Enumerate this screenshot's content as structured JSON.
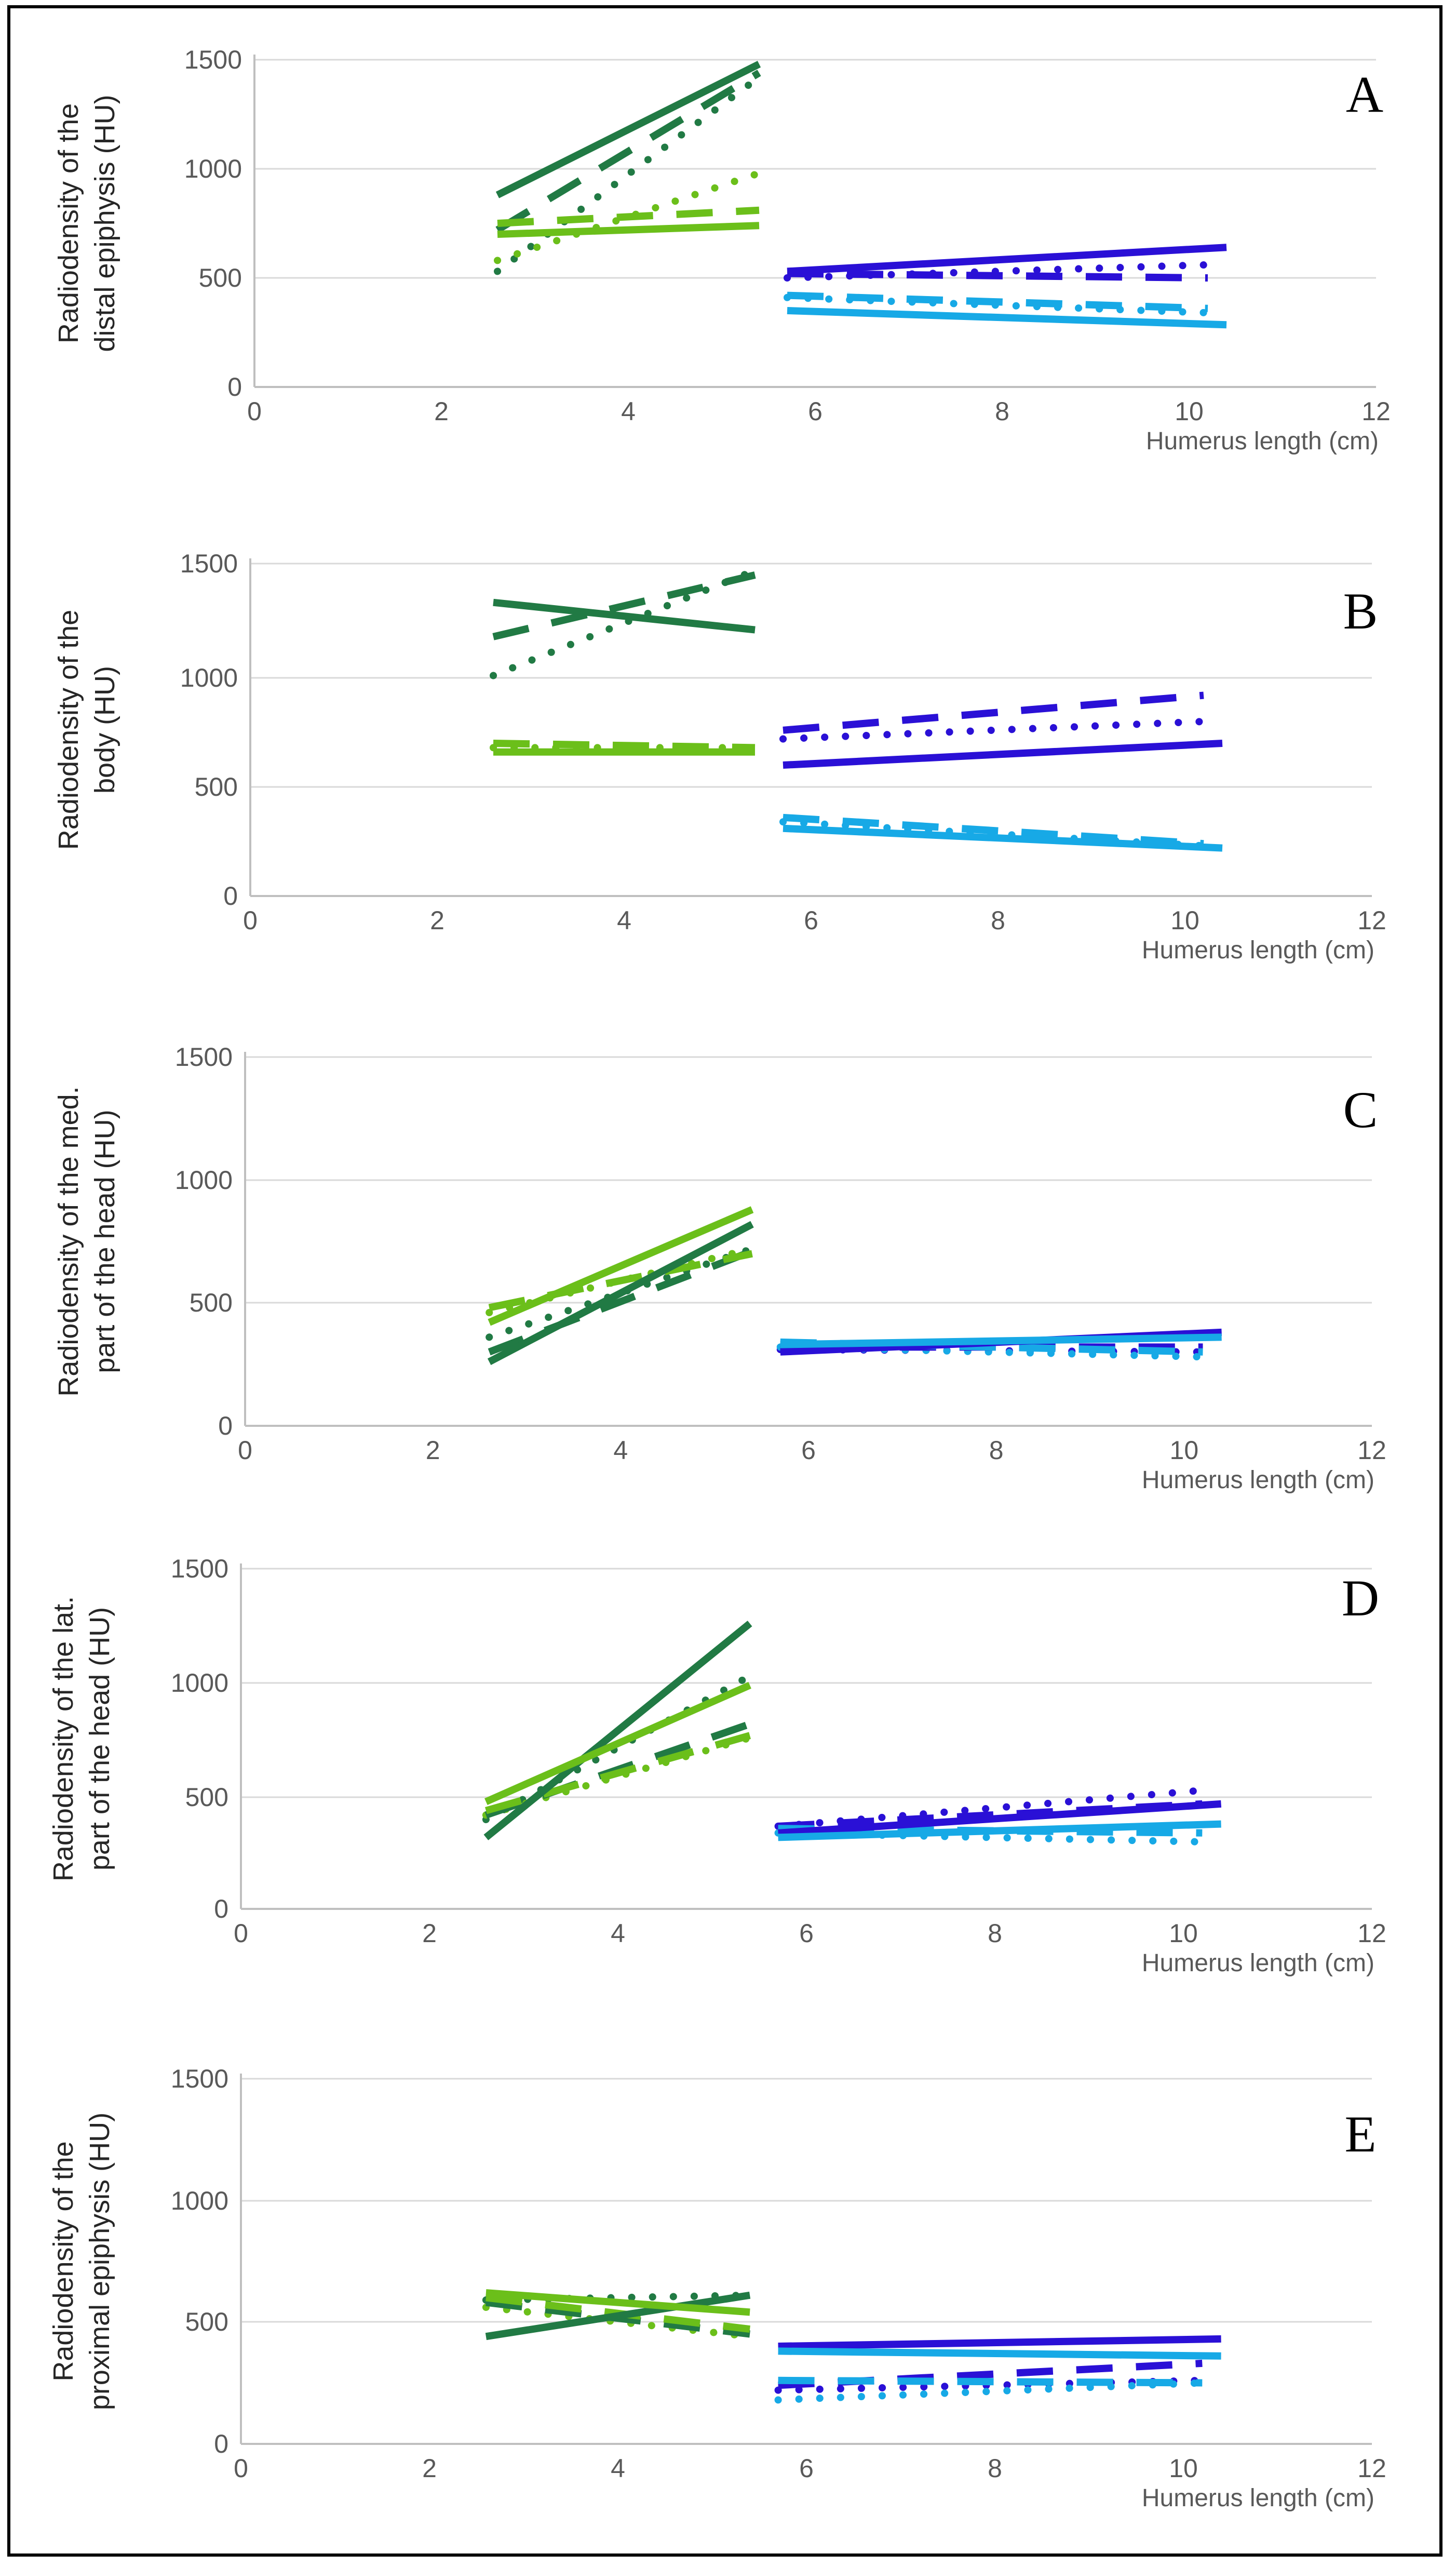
{
  "figure": {
    "colors": {
      "young_dark": "#217a44",
      "young_light": "#6bbf1a",
      "old_dark": "#2a10d6",
      "old_light": "#17a9e6",
      "grid": "#d9d9d9",
      "axis": "#bfbfbf"
    }
  },
  "chart_data": [
    {
      "type": "line",
      "panel_label": "A",
      "ylabel_line1": "Radiodensity of the",
      "ylabel_line2": "distal epiphysis (HU)",
      "xlabel": "Humerus length (cm)",
      "xlim": [
        0,
        12
      ],
      "ylim": [
        0,
        1500
      ],
      "xticks": [
        "0",
        "2",
        "4",
        "6",
        "8",
        "10",
        "12"
      ],
      "yticks": [
        "0",
        "500",
        "1000",
        "1500"
      ],
      "series": [
        {
          "name": "young-dark-solid",
          "color": "young_dark",
          "style": "solid",
          "x": [
            2.6,
            5.4
          ],
          "y": [
            880,
            1480
          ]
        },
        {
          "name": "young-dark-dashed",
          "color": "young_dark",
          "style": "dashed",
          "x": [
            2.6,
            5.4
          ],
          "y": [
            720,
            1440
          ]
        },
        {
          "name": "young-dark-dotted",
          "color": "young_dark",
          "style": "dotted",
          "x": [
            2.6,
            5.4
          ],
          "y": [
            530,
            1420
          ]
        },
        {
          "name": "young-light-solid",
          "color": "young_light",
          "style": "solid",
          "x": [
            2.6,
            5.4
          ],
          "y": [
            700,
            740
          ]
        },
        {
          "name": "young-light-dashed",
          "color": "young_light",
          "style": "dashed",
          "x": [
            2.6,
            5.4
          ],
          "y": [
            750,
            810
          ]
        },
        {
          "name": "young-light-dotted",
          "color": "young_light",
          "style": "dotted",
          "x": [
            2.6,
            5.4
          ],
          "y": [
            580,
            980
          ]
        },
        {
          "name": "old-dark-solid",
          "color": "old_dark",
          "style": "solid",
          "x": [
            5.7,
            10.4
          ],
          "y": [
            530,
            640
          ]
        },
        {
          "name": "old-dark-dashed",
          "color": "old_dark",
          "style": "dashed",
          "x": [
            5.7,
            10.2
          ],
          "y": [
            520,
            500
          ]
        },
        {
          "name": "old-dark-dotted",
          "color": "old_dark",
          "style": "dotted",
          "x": [
            5.7,
            10.2
          ],
          "y": [
            500,
            560
          ]
        },
        {
          "name": "old-light-solid",
          "color": "old_light",
          "style": "solid",
          "x": [
            5.7,
            10.4
          ],
          "y": [
            350,
            285
          ]
        },
        {
          "name": "old-light-dashed",
          "color": "old_light",
          "style": "dashed",
          "x": [
            5.7,
            10.2
          ],
          "y": [
            420,
            360
          ]
        },
        {
          "name": "old-light-dotted",
          "color": "old_light",
          "style": "dotted",
          "x": [
            5.7,
            10.2
          ],
          "y": [
            410,
            340
          ]
        }
      ]
    },
    {
      "type": "line",
      "panel_label": "B",
      "ylabel_line1": "Radiodensity of the",
      "ylabel_line2": "body (HU)",
      "xlabel": "Humerus length (cm)",
      "xlim": [
        0,
        12
      ],
      "ylim": [
        0,
        1500
      ],
      "xticks": [
        "0",
        "2",
        "4",
        "6",
        "8",
        "10",
        "12"
      ],
      "yticks": [
        "0",
        "500",
        "1000",
        "1500"
      ],
      "series": [
        {
          "name": "young-dark-solid",
          "color": "young_dark",
          "style": "solid",
          "x": [
            2.6,
            5.4
          ],
          "y": [
            1330,
            1210
          ]
        },
        {
          "name": "young-dark-dashed",
          "color": "young_dark",
          "style": "dashed",
          "x": [
            2.6,
            5.4
          ],
          "y": [
            1180,
            1450
          ]
        },
        {
          "name": "young-dark-dotted",
          "color": "young_dark",
          "style": "dotted",
          "x": [
            2.6,
            5.4
          ],
          "y": [
            1010,
            1470
          ]
        },
        {
          "name": "young-light-solid",
          "color": "young_light",
          "style": "solid",
          "x": [
            2.6,
            5.4
          ],
          "y": [
            660,
            660
          ]
        },
        {
          "name": "young-light-dashed",
          "color": "young_light",
          "style": "dashed",
          "x": [
            2.6,
            5.4
          ],
          "y": [
            700,
            680
          ]
        },
        {
          "name": "young-light-dotted",
          "color": "young_light",
          "style": "dotted",
          "x": [
            2.6,
            5.4
          ],
          "y": [
            680,
            680
          ]
        },
        {
          "name": "old-dark-solid",
          "color": "old_dark",
          "style": "solid",
          "x": [
            5.7,
            10.4
          ],
          "y": [
            600,
            700
          ]
        },
        {
          "name": "old-dark-dashed",
          "color": "old_dark",
          "style": "dashed",
          "x": [
            5.7,
            10.2
          ],
          "y": [
            760,
            920
          ]
        },
        {
          "name": "old-dark-dotted",
          "color": "old_dark",
          "style": "dotted",
          "x": [
            5.7,
            10.2
          ],
          "y": [
            720,
            800
          ]
        },
        {
          "name": "old-light-solid",
          "color": "old_light",
          "style": "solid",
          "x": [
            5.7,
            10.4
          ],
          "y": [
            310,
            220
          ]
        },
        {
          "name": "old-light-dashed",
          "color": "old_light",
          "style": "dashed",
          "x": [
            5.7,
            10.2
          ],
          "y": [
            360,
            240
          ]
        },
        {
          "name": "old-light-dotted",
          "color": "old_light",
          "style": "dotted",
          "x": [
            5.7,
            10.2
          ],
          "y": [
            340,
            230
          ]
        }
      ]
    },
    {
      "type": "line",
      "panel_label": "C",
      "ylabel_line1": "Radiodensity of the med.",
      "ylabel_line2": "part of the head (HU)",
      "xlabel": "Humerus length (cm)",
      "xlim": [
        0,
        12
      ],
      "ylim": [
        0,
        1500
      ],
      "xticks": [
        "0",
        "2",
        "4",
        "6",
        "8",
        "10",
        "12"
      ],
      "yticks": [
        "0",
        "500",
        "1000",
        "1500"
      ],
      "series": [
        {
          "name": "young-dark-solid",
          "color": "young_dark",
          "style": "solid",
          "x": [
            2.6,
            5.4
          ],
          "y": [
            260,
            820
          ]
        },
        {
          "name": "young-dark-dashed",
          "color": "young_dark",
          "style": "dashed",
          "x": [
            2.6,
            5.4
          ],
          "y": [
            300,
            710
          ]
        },
        {
          "name": "young-dark-dotted",
          "color": "young_dark",
          "style": "dotted",
          "x": [
            2.6,
            5.4
          ],
          "y": [
            360,
            720
          ]
        },
        {
          "name": "young-light-solid",
          "color": "young_light",
          "style": "solid",
          "x": [
            2.6,
            5.4
          ],
          "y": [
            420,
            880
          ]
        },
        {
          "name": "young-light-dashed",
          "color": "young_light",
          "style": "dashed",
          "x": [
            2.6,
            5.4
          ],
          "y": [
            480,
            700
          ]
        },
        {
          "name": "young-light-dotted",
          "color": "young_light",
          "style": "dotted",
          "x": [
            2.6,
            5.4
          ],
          "y": [
            460,
            720
          ]
        },
        {
          "name": "old-dark-solid",
          "color": "old_dark",
          "style": "solid",
          "x": [
            5.7,
            10.4
          ],
          "y": [
            300,
            380
          ]
        },
        {
          "name": "old-dark-dashed",
          "color": "old_dark",
          "style": "dashed",
          "x": [
            5.7,
            10.2
          ],
          "y": [
            320,
            320
          ]
        },
        {
          "name": "old-dark-dotted",
          "color": "old_dark",
          "style": "dotted",
          "x": [
            5.7,
            10.2
          ],
          "y": [
            310,
            300
          ]
        },
        {
          "name": "old-light-solid",
          "color": "old_light",
          "style": "solid",
          "x": [
            5.7,
            10.4
          ],
          "y": [
            330,
            360
          ]
        },
        {
          "name": "old-light-dashed",
          "color": "old_light",
          "style": "dashed",
          "x": [
            5.7,
            10.2
          ],
          "y": [
            340,
            300
          ]
        },
        {
          "name": "old-light-dotted",
          "color": "old_light",
          "style": "dotted",
          "x": [
            5.7,
            10.2
          ],
          "y": [
            320,
            280
          ]
        }
      ]
    },
    {
      "type": "line",
      "panel_label": "D",
      "ylabel_line1": "Radiodensity of the lat.",
      "ylabel_line2": "part of the head (HU)",
      "xlabel": "Humerus length (cm)",
      "xlim": [
        0,
        12
      ],
      "ylim": [
        0,
        1500
      ],
      "xticks": [
        "0",
        "2",
        "4",
        "6",
        "8",
        "10",
        "12"
      ],
      "yticks": [
        "0",
        "500",
        "1000",
        "1500"
      ],
      "series": [
        {
          "name": "young-dark-solid",
          "color": "young_dark",
          "style": "solid",
          "x": [
            2.6,
            5.4
          ],
          "y": [
            320,
            1260
          ]
        },
        {
          "name": "young-dark-dashed",
          "color": "young_dark",
          "style": "dashed",
          "x": [
            2.6,
            5.4
          ],
          "y": [
            420,
            820
          ]
        },
        {
          "name": "young-dark-dotted",
          "color": "young_dark",
          "style": "dotted",
          "x": [
            2.6,
            5.4
          ],
          "y": [
            400,
            1030
          ]
        },
        {
          "name": "young-light-solid",
          "color": "young_light",
          "style": "solid",
          "x": [
            2.6,
            5.4
          ],
          "y": [
            480,
            990
          ]
        },
        {
          "name": "young-light-dashed",
          "color": "young_light",
          "style": "dashed",
          "x": [
            2.6,
            5.4
          ],
          "y": [
            440,
            770
          ]
        },
        {
          "name": "young-light-dotted",
          "color": "young_light",
          "style": "dotted",
          "x": [
            2.6,
            5.4
          ],
          "y": [
            420,
            760
          ]
        },
        {
          "name": "old-dark-solid",
          "color": "old_dark",
          "style": "solid",
          "x": [
            5.7,
            10.4
          ],
          "y": [
            340,
            470
          ]
        },
        {
          "name": "old-dark-dashed",
          "color": "old_dark",
          "style": "dashed",
          "x": [
            5.7,
            10.2
          ],
          "y": [
            370,
            470
          ]
        },
        {
          "name": "old-dark-dotted",
          "color": "old_dark",
          "style": "dotted",
          "x": [
            5.7,
            10.2
          ],
          "y": [
            370,
            530
          ]
        },
        {
          "name": "old-light-solid",
          "color": "old_light",
          "style": "solid",
          "x": [
            5.7,
            10.4
          ],
          "y": [
            320,
            380
          ]
        },
        {
          "name": "old-light-dashed",
          "color": "old_light",
          "style": "dashed",
          "x": [
            5.7,
            10.2
          ],
          "y": [
            360,
            340
          ]
        },
        {
          "name": "old-light-dotted",
          "color": "old_light",
          "style": "dotted",
          "x": [
            5.7,
            10.2
          ],
          "y": [
            340,
            300
          ]
        }
      ]
    },
    {
      "type": "line",
      "panel_label": "E",
      "ylabel_line1": "Radiodensity of the",
      "ylabel_line2": "proximal epiphysis (HU)",
      "xlabel": "Humerus length (cm)",
      "xlim": [
        0,
        12
      ],
      "ylim": [
        0,
        1500
      ],
      "xticks": [
        "0",
        "2",
        "4",
        "6",
        "8",
        "10",
        "12"
      ],
      "yticks": [
        "0",
        "500",
        "1000",
        "1500"
      ],
      "series": [
        {
          "name": "young-dark-solid",
          "color": "young_dark",
          "style": "solid",
          "x": [
            2.6,
            5.4
          ],
          "y": [
            440,
            610
          ]
        },
        {
          "name": "young-dark-dashed",
          "color": "young_dark",
          "style": "dashed",
          "x": [
            2.6,
            5.4
          ],
          "y": [
            580,
            450
          ]
        },
        {
          "name": "young-dark-dotted",
          "color": "young_dark",
          "style": "dotted",
          "x": [
            2.6,
            5.4
          ],
          "y": [
            590,
            610
          ]
        },
        {
          "name": "young-light-solid",
          "color": "young_light",
          "style": "solid",
          "x": [
            2.6,
            5.4
          ],
          "y": [
            620,
            540
          ]
        },
        {
          "name": "young-light-dashed",
          "color": "young_light",
          "style": "dashed",
          "x": [
            2.6,
            5.4
          ],
          "y": [
            600,
            470
          ]
        },
        {
          "name": "young-light-dotted",
          "color": "young_light",
          "style": "dotted",
          "x": [
            2.6,
            5.4
          ],
          "y": [
            560,
            440
          ]
        },
        {
          "name": "old-dark-solid",
          "color": "old_dark",
          "style": "solid",
          "x": [
            5.7,
            10.4
          ],
          "y": [
            400,
            430
          ]
        },
        {
          "name": "old-dark-dashed",
          "color": "old_dark",
          "style": "dashed",
          "x": [
            5.7,
            10.2
          ],
          "y": [
            240,
            330
          ]
        },
        {
          "name": "old-dark-dotted",
          "color": "old_dark",
          "style": "dotted",
          "x": [
            5.7,
            10.2
          ],
          "y": [
            220,
            260
          ]
        },
        {
          "name": "old-light-solid",
          "color": "old_light",
          "style": "solid",
          "x": [
            5.7,
            10.4
          ],
          "y": [
            380,
            360
          ]
        },
        {
          "name": "old-light-dashed",
          "color": "old_light",
          "style": "dashed",
          "x": [
            5.7,
            10.2
          ],
          "y": [
            260,
            250
          ]
        },
        {
          "name": "old-light-dotted",
          "color": "old_light",
          "style": "dotted",
          "x": [
            5.7,
            10.2
          ],
          "y": [
            180,
            250
          ]
        }
      ]
    }
  ]
}
